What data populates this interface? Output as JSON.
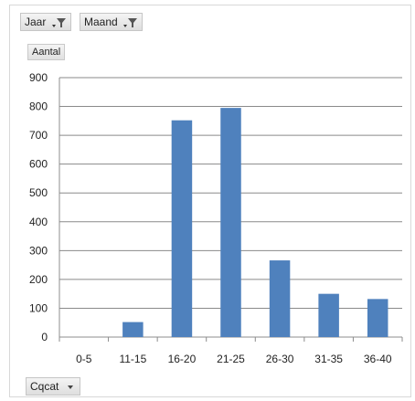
{
  "filters": [
    {
      "label": "Jaar",
      "icon": "filter-dropdown-icon"
    },
    {
      "label": "Maand",
      "icon": "filter-dropdown-icon"
    }
  ],
  "value_field": "Aantal",
  "axis_field": {
    "label": "Cqcat",
    "icon": "dropdown-arrow-icon"
  },
  "chart_data": {
    "type": "bar",
    "categories": [
      "0-5",
      "11-15",
      "16-20",
      "21-25",
      "26-30",
      "31-35",
      "36-40"
    ],
    "values": [
      0,
      52,
      752,
      795,
      266,
      150,
      132
    ],
    "title": "",
    "xlabel": "",
    "ylabel": "",
    "ylim": [
      0,
      900
    ],
    "yticks": [
      0,
      100,
      200,
      300,
      400,
      500,
      600,
      700,
      800,
      900
    ],
    "bar_color": "#4f81bd",
    "grid": true,
    "legend": "none"
  }
}
